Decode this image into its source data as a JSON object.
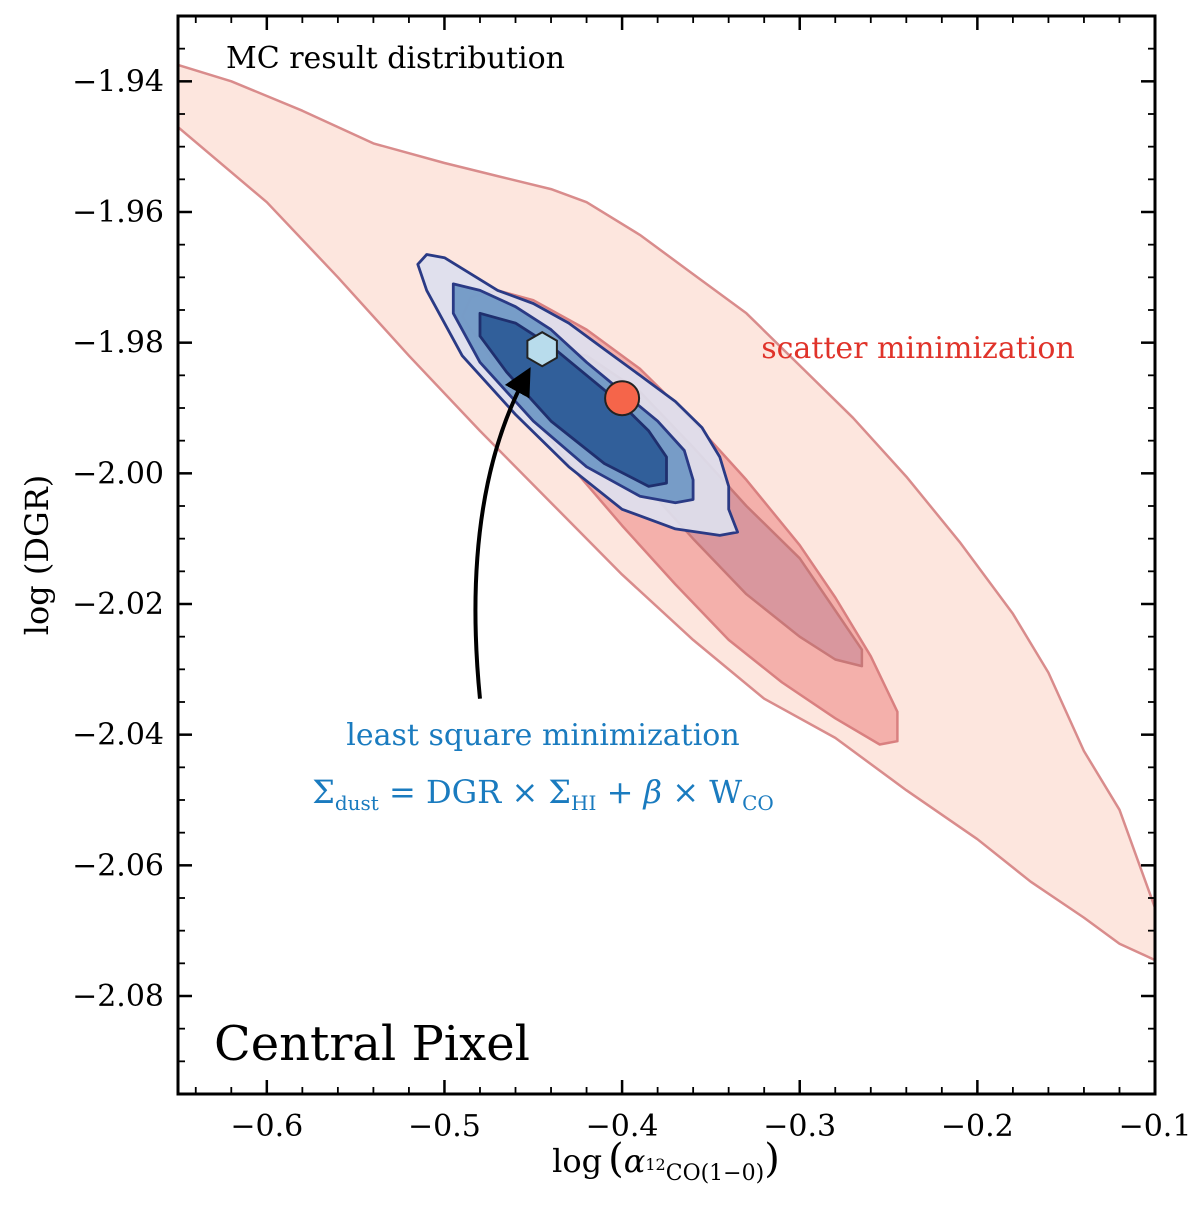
{
  "chart_data": {
    "type": "contour",
    "title": "",
    "xlabel": "log (α12CO(1−0))",
    "xlabel_parts": {
      "prefix": "log",
      "symbol": "α",
      "sup": "12",
      "sub": "CO(1−0)"
    },
    "ylabel": "log (DGR)",
    "xlim": [
      -0.65,
      -0.1
    ],
    "ylim": [
      -2.095,
      -1.93
    ],
    "xticks": [
      -0.6,
      -0.5,
      -0.4,
      -0.3,
      -0.2,
      -0.1
    ],
    "xtick_labels": [
      "−0.6",
      "−0.5",
      "−0.4",
      "−0.3",
      "−0.2",
      "−0.1"
    ],
    "yticks": [
      -1.94,
      -1.96,
      -1.98,
      -2.0,
      -2.02,
      -2.04,
      -2.06,
      -2.08
    ],
    "ytick_labels": [
      "−1.94",
      "−1.96",
      "−1.98",
      "−2.00",
      "−2.02",
      "−2.04",
      "−2.06",
      "−2.08"
    ],
    "grid": false,
    "annotations": {
      "top_left": "MC result distribution",
      "bottom_left": "Central Pixel",
      "scatter_label": "scatter minimization",
      "ls_label": "least square minimization",
      "equation": {
        "sigma": "Σ",
        "dust": "dust",
        "eq": " = DGR × ",
        "hi": "HI",
        "plus": " + ",
        "beta": "β",
        "times": " × W",
        "co": "CO"
      }
    },
    "series": [
      {
        "name": "scatter minimization",
        "color": "#d9534f",
        "levels": [
          {
            "level": "outer",
            "fill": "#fde3da",
            "stroke": "#d98c8c",
            "points": [
              [
                -0.65,
                -1.9375
              ],
              [
                -0.62,
                -1.94
              ],
              [
                -0.58,
                -1.9445
              ],
              [
                -0.54,
                -1.9495
              ],
              [
                -0.5,
                -1.9525
              ],
              [
                -0.47,
                -1.9545
              ],
              [
                -0.44,
                -1.9565
              ],
              [
                -0.42,
                -1.9585
              ],
              [
                -0.39,
                -1.9635
              ],
              [
                -0.36,
                -1.9695
              ],
              [
                -0.33,
                -1.9755
              ],
              [
                -0.3,
                -1.9835
              ],
              [
                -0.27,
                -1.9915
              ],
              [
                -0.24,
                -2.0005
              ],
              [
                -0.21,
                -2.0105
              ],
              [
                -0.18,
                -2.0215
              ],
              [
                -0.16,
                -2.0305
              ],
              [
                -0.14,
                -2.0425
              ],
              [
                -0.12,
                -2.0515
              ],
              [
                -0.1,
                -2.0665
              ],
              [
                -0.1,
                -2.0745
              ],
              [
                -0.12,
                -2.072
              ],
              [
                -0.14,
                -2.068
              ],
              [
                -0.17,
                -2.0625
              ],
              [
                -0.2,
                -2.056
              ],
              [
                -0.24,
                -2.0485
              ],
              [
                -0.28,
                -2.0405
              ],
              [
                -0.32,
                -2.0345
              ],
              [
                -0.36,
                -2.0255
              ],
              [
                -0.4,
                -2.0155
              ],
              [
                -0.44,
                -2.0045
              ],
              [
                -0.48,
                -1.9935
              ],
              [
                -0.52,
                -1.982
              ],
              [
                -0.56,
                -1.97
              ],
              [
                -0.6,
                -1.9585
              ],
              [
                -0.65,
                -1.947
              ]
            ]
          },
          {
            "level": "middle",
            "fill": "#f3aaa5",
            "stroke": "#d98080",
            "points": [
              [
                -0.485,
                -1.973
              ],
              [
                -0.47,
                -1.972
              ],
              [
                -0.45,
                -1.9735
              ],
              [
                -0.42,
                -1.978
              ],
              [
                -0.39,
                -1.984
              ],
              [
                -0.36,
                -1.992
              ],
              [
                -0.33,
                -2.001
              ],
              [
                -0.3,
                -2.011
              ],
              [
                -0.28,
                -2.019
              ],
              [
                -0.26,
                -2.028
              ],
              [
                -0.245,
                -2.0365
              ],
              [
                -0.245,
                -2.041
              ],
              [
                -0.255,
                -2.0415
              ],
              [
                -0.28,
                -2.0375
              ],
              [
                -0.31,
                -2.032
              ],
              [
                -0.34,
                -2.0255
              ],
              [
                -0.37,
                -2.017
              ],
              [
                -0.4,
                -2.008
              ],
              [
                -0.43,
                -1.9985
              ],
              [
                -0.46,
                -1.988
              ],
              [
                -0.48,
                -1.98
              ],
              [
                -0.49,
                -1.976
              ]
            ]
          },
          {
            "level": "inner",
            "fill": "#d6959c",
            "stroke": "#c87878",
            "points": [
              [
                -0.44,
                -1.981
              ],
              [
                -0.42,
                -1.982
              ],
              [
                -0.39,
                -1.9875
              ],
              [
                -0.36,
                -1.996
              ],
              [
                -0.33,
                -2.005
              ],
              [
                -0.3,
                -2.013
              ],
              [
                -0.28,
                -2.021
              ],
              [
                -0.265,
                -2.027
              ],
              [
                -0.265,
                -2.0295
              ],
              [
                -0.28,
                -2.0285
              ],
              [
                -0.3,
                -2.025
              ],
              [
                -0.33,
                -2.0185
              ],
              [
                -0.36,
                -2.01
              ],
              [
                -0.39,
                -2.001
              ],
              [
                -0.42,
                -1.992
              ],
              [
                -0.44,
                -1.985
              ]
            ]
          }
        ],
        "best_fit": {
          "x": -0.4,
          "y": -1.9885,
          "marker": "circle",
          "color": "#f5654a"
        }
      },
      {
        "name": "least square minimization",
        "color": "#1f3a7a",
        "levels": [
          {
            "level": "outer",
            "fill": "#dde0ee",
            "stroke": "#2a3a85",
            "points": [
              [
                -0.51,
                -1.9665
              ],
              [
                -0.5,
                -1.967
              ],
              [
                -0.485,
                -1.9695
              ],
              [
                -0.47,
                -1.972
              ],
              [
                -0.45,
                -1.974
              ],
              [
                -0.43,
                -1.977
              ],
              [
                -0.41,
                -1.981
              ],
              [
                -0.39,
                -1.985
              ],
              [
                -0.37,
                -1.989
              ],
              [
                -0.355,
                -1.993
              ],
              [
                -0.345,
                -1.9975
              ],
              [
                -0.34,
                -2.002
              ],
              [
                -0.34,
                -2.0055
              ],
              [
                -0.335,
                -2.009
              ],
              [
                -0.345,
                -2.0095
              ],
              [
                -0.37,
                -2.0085
              ],
              [
                -0.4,
                -2.0055
              ],
              [
                -0.43,
                -1.999
              ],
              [
                -0.46,
                -1.991
              ],
              [
                -0.49,
                -1.982
              ],
              [
                -0.51,
                -1.972
              ],
              [
                -0.515,
                -1.968
              ]
            ]
          },
          {
            "level": "middle",
            "fill": "#6e97c4",
            "stroke": "#2a3a85",
            "points": [
              [
                -0.495,
                -1.971
              ],
              [
                -0.48,
                -1.972
              ],
              [
                -0.46,
                -1.9745
              ],
              [
                -0.44,
                -1.978
              ],
              [
                -0.42,
                -1.983
              ],
              [
                -0.4,
                -1.9875
              ],
              [
                -0.38,
                -1.992
              ],
              [
                -0.365,
                -1.9965
              ],
              [
                -0.36,
                -2.001
              ],
              [
                -0.36,
                -2.004
              ],
              [
                -0.37,
                -2.0045
              ],
              [
                -0.39,
                -2.0035
              ],
              [
                -0.42,
                -1.999
              ],
              [
                -0.45,
                -1.992
              ],
              [
                -0.48,
                -1.983
              ],
              [
                -0.495,
                -1.9755
              ]
            ]
          },
          {
            "level": "inner",
            "fill": "#2b5a96",
            "stroke": "#1f2f6e",
            "points": [
              [
                -0.48,
                -1.9755
              ],
              [
                -0.46,
                -1.977
              ],
              [
                -0.44,
                -1.9805
              ],
              [
                -0.42,
                -1.985
              ],
              [
                -0.4,
                -1.9895
              ],
              [
                -0.385,
                -1.9935
              ],
              [
                -0.375,
                -1.9975
              ],
              [
                -0.375,
                -2.0015
              ],
              [
                -0.385,
                -2.002
              ],
              [
                -0.41,
                -1.9985
              ],
              [
                -0.44,
                -1.992
              ],
              [
                -0.465,
                -1.9845
              ],
              [
                -0.48,
                -1.979
              ]
            ]
          }
        ],
        "best_fit": {
          "x": -0.445,
          "y": -1.981,
          "marker": "hexagon",
          "color": "#b8dcec"
        }
      }
    ],
    "arrow": {
      "from": [
        -0.48,
        -2.0345
      ],
      "to": [
        -0.453,
        -1.9845
      ]
    },
    "colors": {
      "scatter_text": "#e0332a",
      "ls_text": "#1a7bbf"
    }
  }
}
